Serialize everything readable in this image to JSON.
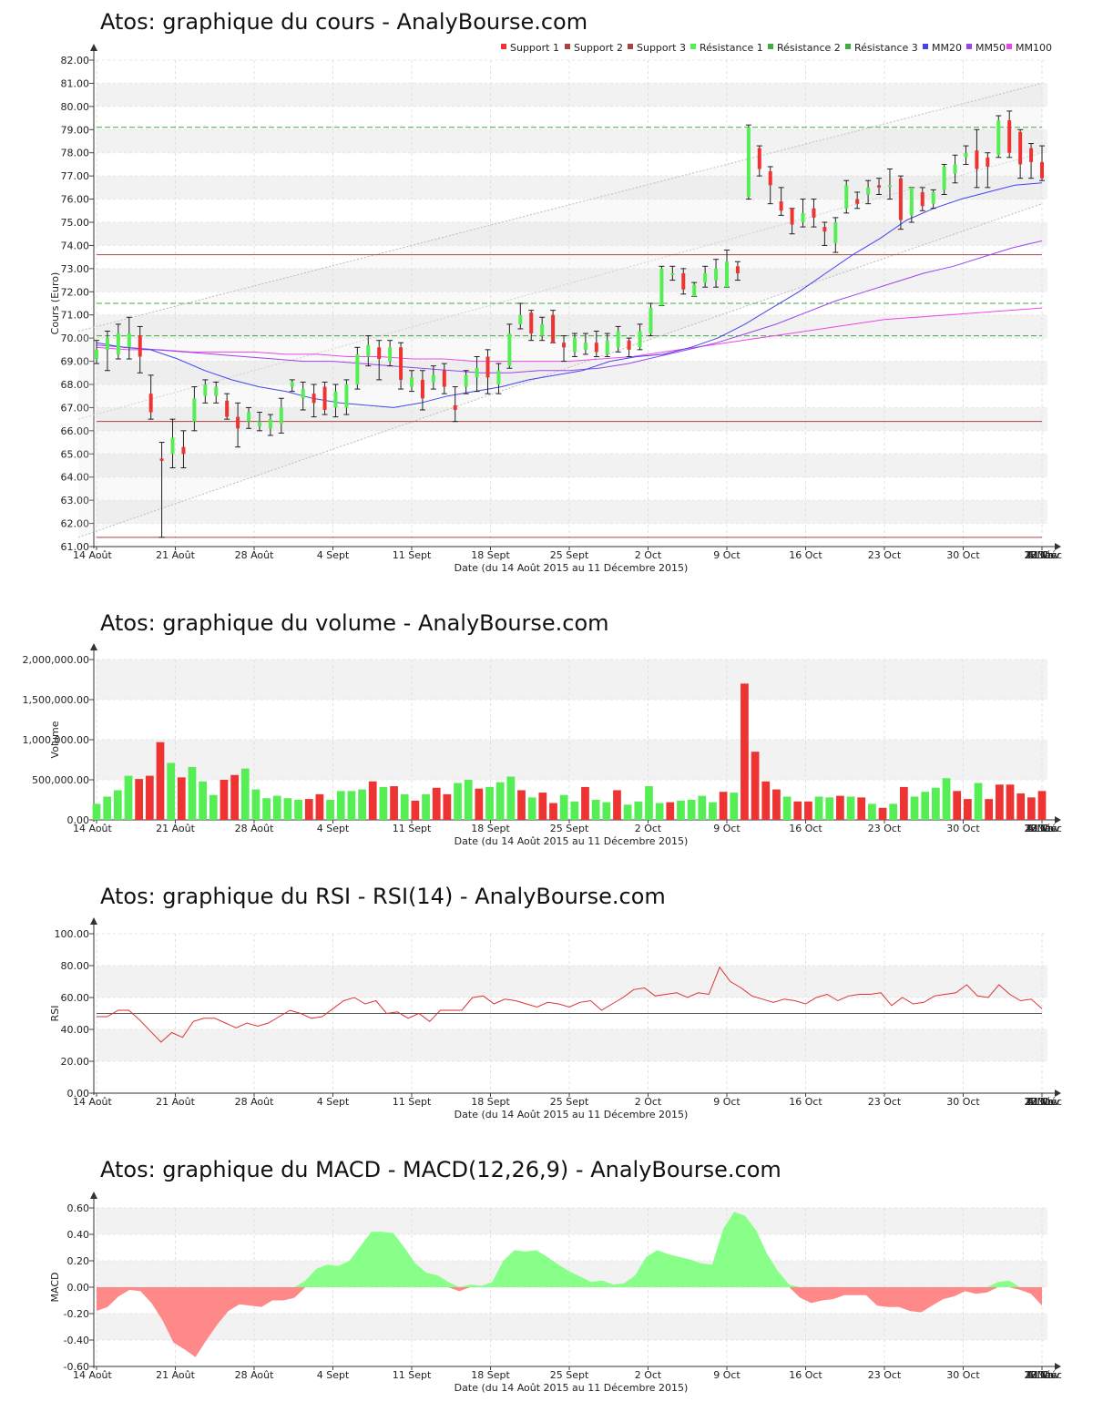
{
  "x_ticks": [
    "14 Août",
    "21 Août",
    "28 Août",
    "4 Sept",
    "11 Sept",
    "18 Sept",
    "25 Sept",
    "2 Oct",
    "9 Oct",
    "16 Oct",
    "23 Oct",
    "30 Oct",
    "6 Nov",
    "13 Nov",
    "20 Nov",
    "27 Nov",
    "4 Déc",
    "11 Déc"
  ],
  "x_label": "Date (du 14 Août 2015 au 11 Décembre 2015)",
  "colors": {
    "up": "#55ee55",
    "down": "#ee3333",
    "support": "#aa4444",
    "resistance": "#44aa44",
    "mm20": "#4444ee",
    "mm50": "#9944ee",
    "mm100": "#ee44ee",
    "grid_band": "#f2f2f2",
    "macd_pos": "#88ff88",
    "macd_neg": "#ff8888"
  },
  "chart_data": [
    {
      "type": "candlestick",
      "title": "Atos: graphique du cours - AnalyBourse.com",
      "ylabel": "Cours (Euro)",
      "ylim": [
        61,
        82
      ],
      "yticks": [
        "61.00",
        "62.00",
        "63.00",
        "64.00",
        "65.00",
        "66.00",
        "67.00",
        "68.00",
        "69.00",
        "70.00",
        "71.00",
        "72.00",
        "73.00",
        "74.00",
        "75.00",
        "76.00",
        "77.00",
        "78.00",
        "79.00",
        "80.00",
        "81.00",
        "82.00"
      ],
      "legend": [
        "Support 1",
        "Support 2",
        "Support 3",
        "Résistance 1",
        "Résistance 2",
        "Résistance 3",
        "MM20",
        "MM50",
        "MM100"
      ],
      "legend_position": "top-right",
      "levels": {
        "support_1": 66.4,
        "support_2": 73.6,
        "support_3": 61.4,
        "resistance_1": 70.1,
        "resistance_2": 71.5,
        "resistance_3": 79.1
      },
      "channel": {
        "upper": [
          70.3,
          81.0
        ],
        "middle": [
          66.5,
          78.0
        ],
        "lower": [
          61.4,
          75.8
        ]
      },
      "candles": [
        [
          69.1,
          69.5,
          69.9,
          68.9
        ],
        [
          69.5,
          70.0,
          70.3,
          68.6
        ],
        [
          69.3,
          70.2,
          70.6,
          69.1
        ],
        [
          69.6,
          70.2,
          70.9,
          69.1
        ],
        [
          70.1,
          69.2,
          70.5,
          68.5
        ],
        [
          67.6,
          66.8,
          68.4,
          66.5
        ],
        [
          64.8,
          64.7,
          65.5,
          61.4
        ],
        [
          65.0,
          65.7,
          66.5,
          64.4
        ],
        [
          65.3,
          65.0,
          66.0,
          64.4
        ],
        [
          66.4,
          67.4,
          67.9,
          66.0
        ],
        [
          67.5,
          68.0,
          68.2,
          67.2
        ],
        [
          67.5,
          67.9,
          68.1,
          67.2
        ],
        [
          67.3,
          66.6,
          67.6,
          66.5
        ],
        [
          66.6,
          66.1,
          67.2,
          65.3
        ],
        [
          66.4,
          66.8,
          67.0,
          66.1
        ],
        [
          66.2,
          66.4,
          66.8,
          66.0
        ],
        [
          66.1,
          66.5,
          66.7,
          65.8
        ],
        [
          66.3,
          67.0,
          67.4,
          65.9
        ],
        [
          67.9,
          68.1,
          68.2,
          67.7
        ],
        [
          67.4,
          67.8,
          68.1,
          66.9
        ],
        [
          67.6,
          67.2,
          68.0,
          66.6
        ],
        [
          67.9,
          66.9,
          68.1,
          66.7
        ],
        [
          67.0,
          67.7,
          68.0,
          66.6
        ],
        [
          67.0,
          68.0,
          68.2,
          66.7
        ],
        [
          68.0,
          69.3,
          69.6,
          67.8
        ],
        [
          69.2,
          69.7,
          70.1,
          68.8
        ],
        [
          69.6,
          69.1,
          69.9,
          68.2
        ],
        [
          69.0,
          69.6,
          69.9,
          68.8
        ],
        [
          69.6,
          68.2,
          69.8,
          67.8
        ],
        [
          67.9,
          68.3,
          68.6,
          67.7
        ],
        [
          68.2,
          67.4,
          68.6,
          66.9
        ],
        [
          68.1,
          68.4,
          68.8,
          67.8
        ],
        [
          68.6,
          67.9,
          68.9,
          67.6
        ],
        [
          67.1,
          66.9,
          67.9,
          66.4
        ],
        [
          67.9,
          68.4,
          68.6,
          67.6
        ],
        [
          68.3,
          68.7,
          69.2,
          67.7
        ],
        [
          69.2,
          68.3,
          69.5,
          67.6
        ],
        [
          68.0,
          68.6,
          68.9,
          67.6
        ],
        [
          68.8,
          70.2,
          70.6,
          68.7
        ],
        [
          70.6,
          71.0,
          71.5,
          70.4
        ],
        [
          71.1,
          70.2,
          71.2,
          69.9
        ],
        [
          70.1,
          70.6,
          70.9,
          69.9
        ],
        [
          71.0,
          69.8,
          71.2,
          69.8
        ],
        [
          69.8,
          69.6,
          70.1,
          69.0
        ],
        [
          69.4,
          70.0,
          70.2,
          69.2
        ],
        [
          69.5,
          69.8,
          70.2,
          69.3
        ],
        [
          69.8,
          69.4,
          70.3,
          69.2
        ],
        [
          69.3,
          69.9,
          70.2,
          69.2
        ],
        [
          69.6,
          70.3,
          70.5,
          69.4
        ],
        [
          69.9,
          69.5,
          70.0,
          69.2
        ],
        [
          69.6,
          70.3,
          70.6,
          69.5
        ],
        [
          70.2,
          71.3,
          71.5,
          70.1
        ],
        [
          71.4,
          73.0,
          73.1,
          71.4
        ],
        [
          72.8,
          72.8,
          73.1,
          72.5
        ],
        [
          72.8,
          72.1,
          73.0,
          71.9
        ],
        [
          71.8,
          72.3,
          72.4,
          71.8
        ],
        [
          72.4,
          72.8,
          73.1,
          72.2
        ],
        [
          72.5,
          73.0,
          73.4,
          72.2
        ],
        [
          72.2,
          73.3,
          73.8,
          72.2
        ],
        [
          73.1,
          72.8,
          73.3,
          72.5
        ],
        [
          76.1,
          79.1,
          79.2,
          76.0
        ],
        [
          78.2,
          77.3,
          78.3,
          77.0
        ],
        [
          77.2,
          76.6,
          77.4,
          75.8
        ],
        [
          75.9,
          75.5,
          76.5,
          75.3
        ],
        [
          75.6,
          74.9,
          75.6,
          74.5
        ],
        [
          75.0,
          75.4,
          76.0,
          74.8
        ],
        [
          75.6,
          75.2,
          76.0,
          74.8
        ],
        [
          74.8,
          74.6,
          75.0,
          74.0
        ],
        [
          74.1,
          75.0,
          75.2,
          73.7
        ],
        [
          75.6,
          76.6,
          76.8,
          75.4
        ],
        [
          76.0,
          75.8,
          76.3,
          75.6
        ],
        [
          76.2,
          76.5,
          76.8,
          75.8
        ],
        [
          76.6,
          76.5,
          76.9,
          76.2
        ],
        [
          76.6,
          76.6,
          77.3,
          76.0
        ],
        [
          76.9,
          75.1,
          77.0,
          74.7
        ],
        [
          75.3,
          76.5,
          76.5,
          75.0
        ],
        [
          76.3,
          75.7,
          76.5,
          75.5
        ],
        [
          75.8,
          76.3,
          76.4,
          75.6
        ],
        [
          76.4,
          77.4,
          77.5,
          76.2
        ],
        [
          77.1,
          77.5,
          77.9,
          76.7
        ],
        [
          77.8,
          78.0,
          78.3,
          77.5
        ],
        [
          78.1,
          77.3,
          79.0,
          76.5
        ],
        [
          77.8,
          77.4,
          78.0,
          76.5
        ],
        [
          77.9,
          79.4,
          79.6,
          77.8
        ],
        [
          79.4,
          78.0,
          79.8,
          77.8
        ],
        [
          78.9,
          77.5,
          79.0,
          76.9
        ],
        [
          78.2,
          77.6,
          78.4,
          76.9
        ],
        [
          77.6,
          76.9,
          78.3,
          76.8
        ]
      ],
      "mm20": [
        69.8,
        69.6,
        69.5,
        69.1,
        68.6,
        68.2,
        67.9,
        67.7,
        67.4,
        67.2,
        67.1,
        67.0,
        67.2,
        67.5,
        67.7,
        67.9,
        68.2,
        68.4,
        68.6,
        69.0,
        69.2,
        69.3,
        69.6,
        70.0,
        70.6,
        71.3,
        72.0,
        72.8,
        73.6,
        74.3,
        75.1,
        75.6,
        76.0,
        76.3,
        76.6,
        76.7
      ],
      "mm50": [
        69.7,
        69.6,
        69.5,
        69.4,
        69.3,
        69.2,
        69.1,
        69.0,
        69.0,
        68.9,
        68.8,
        68.7,
        68.6,
        68.5,
        68.5,
        68.6,
        68.6,
        68.7,
        68.9,
        69.2,
        69.5,
        69.8,
        70.2,
        70.6,
        71.1,
        71.6,
        72.0,
        72.4,
        72.8,
        73.1,
        73.5,
        73.9,
        74.2
      ],
      "mm100": [
        69.6,
        69.5,
        69.5,
        69.4,
        69.4,
        69.4,
        69.3,
        69.3,
        69.2,
        69.2,
        69.1,
        69.1,
        69.0,
        69.0,
        69.0,
        69.0,
        69.1,
        69.2,
        69.4,
        69.6,
        69.8,
        70.0,
        70.2,
        70.4,
        70.6,
        70.8,
        70.9,
        71.0,
        71.1,
        71.2,
        71.3
      ]
    },
    {
      "type": "bar",
      "title": "Atos: graphique du volume - AnalyBourse.com",
      "ylabel": "Volume",
      "ylim": [
        0,
        2000000
      ],
      "yticks": [
        "0.00",
        "500,000.00",
        "1,000,000.00",
        "1,500,000.00",
        "2,000,000.00"
      ],
      "values": [
        200000,
        290000,
        370000,
        550000,
        510000,
        550000,
        970000,
        710000,
        530000,
        660000,
        480000,
        310000,
        500000,
        560000,
        640000,
        380000,
        270000,
        300000,
        270000,
        250000,
        260000,
        320000,
        250000,
        360000,
        360000,
        380000,
        480000,
        410000,
        420000,
        320000,
        240000,
        320000,
        400000,
        320000,
        460000,
        500000,
        390000,
        410000,
        470000,
        540000,
        370000,
        280000,
        340000,
        210000,
        310000,
        230000,
        410000,
        250000,
        220000,
        370000,
        190000,
        230000,
        420000,
        210000,
        220000,
        240000,
        250000,
        300000,
        220000,
        350000,
        340000,
        1700000,
        850000,
        480000,
        380000,
        290000,
        230000,
        230000,
        290000,
        280000,
        300000,
        290000,
        280000,
        200000,
        150000,
        200000,
        410000,
        290000,
        350000,
        400000,
        520000,
        360000,
        260000,
        460000,
        260000,
        440000,
        440000,
        330000,
        280000,
        360000
      ]
    },
    {
      "type": "line",
      "title": "Atos: graphique du RSI - RSI(14) - AnalyBourse.com",
      "ylabel": "RSI",
      "ylim": [
        0,
        100
      ],
      "yticks": [
        "0.00",
        "20.00",
        "40.00",
        "60.00",
        "80.00",
        "100.00"
      ],
      "reference": 50,
      "values": [
        48,
        48,
        52,
        52,
        46,
        39,
        32,
        38,
        35,
        45,
        47,
        47,
        44,
        41,
        44,
        42,
        44,
        48,
        52,
        50,
        47,
        48,
        53,
        58,
        60,
        56,
        58,
        50,
        51,
        47,
        50,
        45,
        52,
        52,
        52,
        60,
        61,
        56,
        59,
        58,
        56,
        54,
        57,
        56,
        54,
        57,
        58,
        52,
        56,
        60,
        65,
        66,
        61,
        62,
        63,
        60,
        63,
        62,
        79,
        70,
        66,
        61,
        59,
        57,
        59,
        58,
        56,
        60,
        62,
        58,
        61,
        62,
        62,
        63,
        55,
        60,
        56,
        57,
        61,
        62,
        63,
        68,
        61,
        60,
        68,
        62,
        58,
        59,
        53
      ]
    },
    {
      "type": "area",
      "title": "Atos: graphique du MACD - MACD(12,26,9) - AnalyBourse.com",
      "ylabel": "MACD",
      "ylim": [
        -0.6,
        0.6
      ],
      "yticks": [
        "-0.60",
        "-0.40",
        "-0.20",
        "0.00",
        "0.20",
        "0.40",
        "0.60"
      ],
      "values": [
        -0.18,
        -0.15,
        -0.07,
        -0.02,
        -0.03,
        -0.12,
        -0.25,
        -0.42,
        -0.47,
        -0.53,
        -0.4,
        -0.28,
        -0.18,
        -0.13,
        -0.14,
        -0.15,
        -0.1,
        -0.1,
        -0.08,
        0.05,
        0.14,
        0.17,
        0.16,
        0.2,
        0.31,
        0.42,
        0.42,
        0.41,
        0.3,
        0.18,
        0.11,
        0.09,
        0.04,
        -0.03,
        0.02,
        0.01,
        0.04,
        0.2,
        0.28,
        0.27,
        0.28,
        0.23,
        0.17,
        0.12,
        0.08,
        0.04,
        0.05,
        0.02,
        0.03,
        0.09,
        0.23,
        0.28,
        0.25,
        0.23,
        0.21,
        0.18,
        0.17,
        0.44,
        0.57,
        0.54,
        0.43,
        0.25,
        0.12,
        0.02,
        -0.08,
        -0.12,
        -0.1,
        -0.09,
        -0.06,
        -0.06,
        -0.06,
        -0.14,
        -0.15,
        -0.15,
        -0.18,
        -0.19,
        -0.14,
        -0.09,
        -0.07,
        -0.03,
        -0.05,
        -0.04,
        0.04,
        0.05,
        -0.02,
        -0.05,
        -0.14
      ]
    }
  ]
}
